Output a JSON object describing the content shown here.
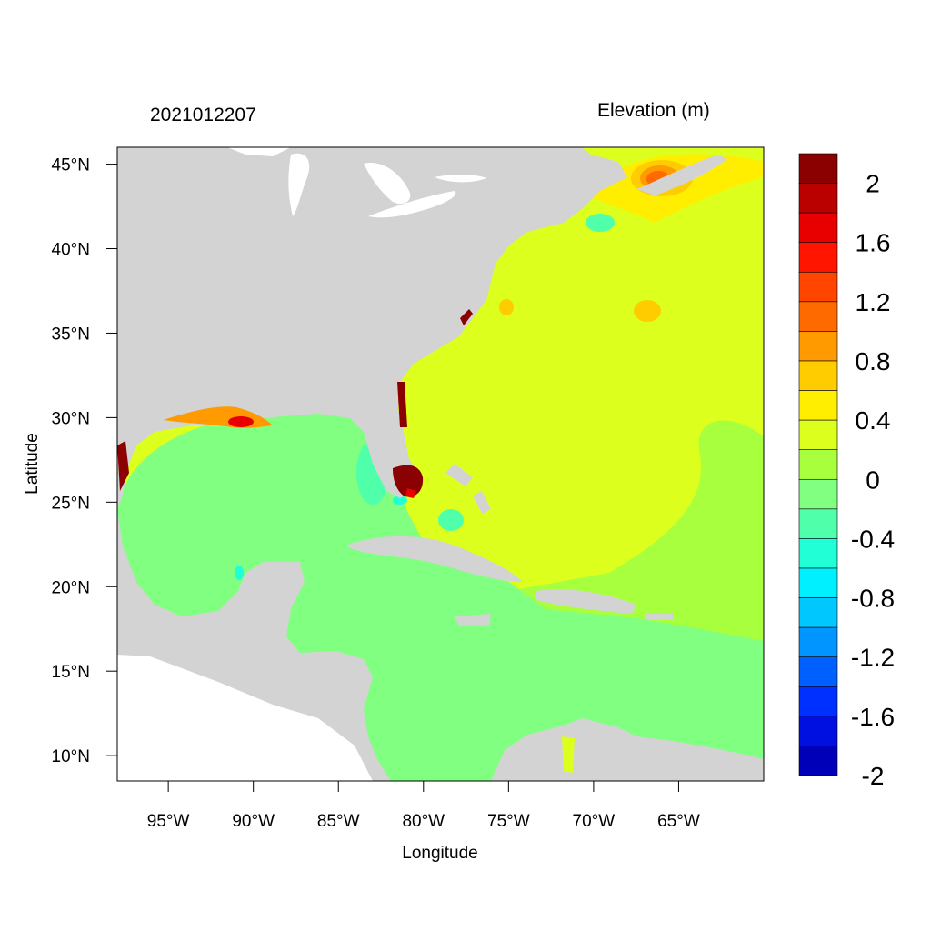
{
  "map": {
    "timestamp": "2021012207",
    "variable_title": "Elevation (m)",
    "xlabel": "Longitude",
    "ylabel": "Latitude",
    "lon_range": [
      -98.0,
      -60.0
    ],
    "lat_range": [
      8.5,
      46.0
    ],
    "lon_ticks": [
      {
        "value": -95,
        "label": "95°W"
      },
      {
        "value": -90,
        "label": "90°W"
      },
      {
        "value": -85,
        "label": "85°W"
      },
      {
        "value": -80,
        "label": "80°W"
      },
      {
        "value": -75,
        "label": "75°W"
      },
      {
        "value": -70,
        "label": "70°W"
      },
      {
        "value": -65,
        "label": "65°W"
      }
    ],
    "lat_ticks": [
      {
        "value": 45,
        "label": "45°N"
      },
      {
        "value": 40,
        "label": "40°N"
      },
      {
        "value": 35,
        "label": "35°N"
      },
      {
        "value": 30,
        "label": "30°N"
      },
      {
        "value": 25,
        "label": "25°N"
      },
      {
        "value": 20,
        "label": "20°N"
      },
      {
        "value": 15,
        "label": "15°N"
      },
      {
        "value": 10,
        "label": "10°N"
      }
    ],
    "colors": {
      "land": "#d3d3d3",
      "frame": "#000000",
      "open_ocean_level": "0.2 to 0.4 m",
      "gulf_caribbean_level": "-0.2 to 0 m"
    }
  },
  "colorbar": {
    "levels_top_to_bottom": [
      "#8b0000",
      "#bb0000",
      "#e80000",
      "#ff1500",
      "#ff4500",
      "#ff6a00",
      "#ff9a00",
      "#ffcc00",
      "#ffee00",
      "#dcff1e",
      "#a8ff3e",
      "#80ff80",
      "#50ffaa",
      "#20ffd5",
      "#00f0ff",
      "#00c8ff",
      "#0095ff",
      "#0060ff",
      "#0030ff",
      "#0010e0",
      "#0000b8"
    ],
    "labels": [
      "2",
      "1.6",
      "1.2",
      "0.8",
      "0.4",
      "0",
      "-0.4",
      "-0.8",
      "-1.2",
      "-1.6",
      "-2"
    ]
  }
}
